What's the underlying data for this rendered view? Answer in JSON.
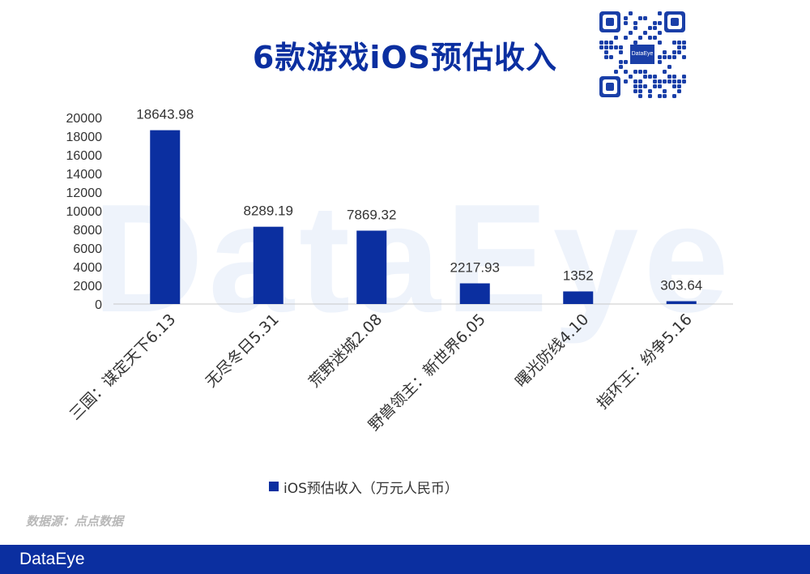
{
  "header": {
    "title": "6款游戏iOS预估收入",
    "qr_badge": "DataEye"
  },
  "watermark": "DataEye",
  "chart_data": {
    "type": "bar",
    "categories": [
      "三国：谋定天下6.13",
      "无尽冬日5.31",
      "荒野迷城2.08",
      "野兽领主：新世界6.05",
      "曙光防线4.10",
      "指环王：纷争5.16"
    ],
    "series": [
      {
        "name": "iOS预估收入（万元人民币）",
        "values": [
          18643.98,
          8289.19,
          7869.32,
          2217.93,
          1352,
          303.64
        ]
      }
    ],
    "data_labels": [
      "18643.98",
      "8289.19",
      "7869.32",
      "2217.93",
      "1352",
      "303.64"
    ],
    "yticks": [
      0,
      2000,
      4000,
      6000,
      8000,
      10000,
      12000,
      14000,
      16000,
      18000,
      20000
    ],
    "ylim": [
      0,
      20000
    ],
    "bar_color": "#0b2fa0",
    "legend_position": "bottom",
    "grid": false
  },
  "legend": {
    "label": "iOS预估收入（万元人民币）"
  },
  "source": "数据源：点点数据",
  "footer": {
    "logo": "DataEye"
  },
  "colors": {
    "primary": "#0b2fa0",
    "footer_bg": "#0b2fa0"
  }
}
